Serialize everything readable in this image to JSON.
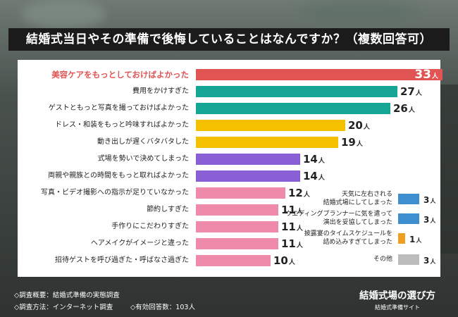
{
  "header": {
    "title": "結婚式当日やその準備で後悔していることはなんですか？（複数回答可）"
  },
  "chart_data": {
    "type": "bar",
    "orientation": "horizontal",
    "unit": "人",
    "categories": [
      "美容ケアをもっとしておけばよかった",
      "費用をかけすぎた",
      "ゲストともっと写真を撮っておけばよかった",
      "ドレス・和装をもっと吟味すればよかった",
      "動き出しが遅くバタバタした",
      "式場を勢いで決めてしまった",
      "両親や親族との時間をもっと取ればよかった",
      "写真・ビデオ撮影への指示が足りていなかった",
      "節約しすぎた",
      "手作りにこだわりすぎた",
      "ヘアメイクがイメージと違った",
      "招待ゲストを呼び過ぎた・呼ばなさ過ぎた"
    ],
    "values": [
      33,
      27,
      26,
      20,
      19,
      14,
      14,
      12,
      11,
      11,
      11,
      10
    ],
    "colors": [
      "#e05454",
      "#14a594",
      "#14a594",
      "#f5c000",
      "#f5c000",
      "#8a5fd6",
      "#8a5fd6",
      "#f08aaa",
      "#f08aaa",
      "#f08aaa",
      "#f08aaa",
      "#f08aaa"
    ],
    "xlim": [
      0,
      33
    ],
    "side_categories": [
      "天気に左右される\n結婚式場にしてしまった",
      "ウエディングプランナーに気を遣って\n演出を妥協してしまった",
      "披露宴のタイムスケジュールを\n詰め込みすぎてしまった",
      "その他"
    ],
    "side_values": [
      3,
      3,
      1,
      3
    ],
    "side_colors": [
      "#3e8fd0",
      "#3e8fd0",
      "#f0a020",
      "#bcbcbc"
    ]
  },
  "footer": {
    "survey_overview": "◇調査概要：結婚式準備の実態調査",
    "survey_method": "◇調査方法：インターネット調査",
    "respondents": "◇有効回答数：103人",
    "brand": "結婚式場の選び方",
    "brand_sub": "結婚式準備サイト"
  }
}
